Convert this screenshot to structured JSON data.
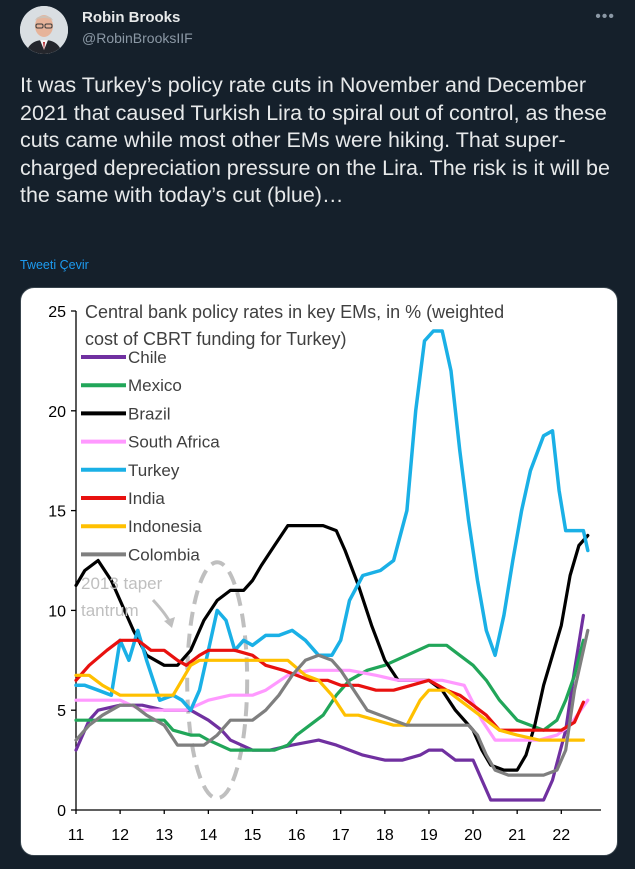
{
  "author": {
    "name": "Robin Brooks",
    "handle": "@RobinBrooksIIF"
  },
  "icons": {
    "more": "more-options-icon",
    "avatar": "profile-photo"
  },
  "tweet": {
    "text": "It was Turkey’s policy rate cuts in November and December 2021 that caused Turkish Lira to spiral out of control, as these cuts came while most other EMs were hiking. That super-charged depreciation pressure on the Lira. The risk is it will be the same with today’s cut (blue)…",
    "translate_label": "Tweeti Çevir"
  },
  "colors": {
    "background": "#15202b",
    "link": "#1d9bf0"
  },
  "chart_data": {
    "type": "line",
    "title": "Central bank policy rates in key EMs, in % (weighted cost of CBRT funding for Turkey)",
    "xlabel": "",
    "ylabel": "",
    "xlim": [
      11,
      22.9
    ],
    "ylim": [
      0,
      25
    ],
    "x_ticks": [
      "11",
      "12",
      "13",
      "14",
      "15",
      "16",
      "17",
      "18",
      "19",
      "20",
      "21",
      "22"
    ],
    "y_ticks": [
      "0",
      "5",
      "10",
      "15",
      "20",
      "25"
    ],
    "grid": false,
    "legend_position": "top-left",
    "annotation": "2013 taper tantrum",
    "series": [
      {
        "name": "Chile",
        "color": "#7030a0",
        "x": [
          11,
          11.1,
          11.3,
          11.5,
          12,
          12.5,
          13,
          13.6,
          14,
          14.3,
          14.5,
          15,
          15.4,
          15.9,
          16.5,
          16.9,
          17.5,
          18.0,
          18.4,
          18.8,
          19.0,
          19.3,
          19.6,
          20.0,
          20.2,
          20.4,
          20.8,
          21.0,
          21.3,
          21.6,
          21.7,
          21.8,
          21.95,
          22.1,
          22.3,
          22.5
        ],
        "y": [
          3.0,
          3.5,
          4.5,
          5.0,
          5.25,
          5.25,
          5.0,
          5.0,
          4.5,
          4.0,
          3.5,
          3.0,
          3.0,
          3.25,
          3.5,
          3.25,
          2.75,
          2.5,
          2.5,
          2.75,
          3.0,
          3.0,
          2.5,
          2.5,
          1.5,
          0.5,
          0.5,
          0.5,
          0.5,
          0.5,
          1.0,
          1.5,
          2.75,
          4.0,
          7.0,
          9.75
        ]
      },
      {
        "name": "Mexico",
        "color": "#21a659",
        "x": [
          11,
          11.5,
          12,
          12.5,
          13.0,
          13.2,
          13.6,
          13.8,
          14.0,
          14.5,
          15.0,
          15.5,
          15.8,
          16.0,
          16.3,
          16.6,
          16.9,
          17.2,
          17.6,
          18.0,
          18.5,
          19.0,
          19.4,
          19.7,
          20.0,
          20.3,
          20.6,
          21.0,
          21.3,
          21.6,
          21.9,
          22.1,
          22.3,
          22.5
        ],
        "y": [
          4.5,
          4.5,
          4.5,
          4.5,
          4.5,
          4.0,
          3.75,
          3.75,
          3.5,
          3.0,
          3.0,
          3.0,
          3.25,
          3.75,
          4.25,
          4.75,
          5.75,
          6.5,
          7.0,
          7.25,
          7.75,
          8.25,
          8.25,
          7.75,
          7.25,
          6.5,
          5.5,
          4.5,
          4.25,
          4.0,
          4.5,
          5.5,
          6.75,
          8.5
        ]
      },
      {
        "name": "Brazil",
        "color": "#000000",
        "x": [
          11,
          11.2,
          11.5,
          11.8,
          12.0,
          12.3,
          12.6,
          13.0,
          13.3,
          13.6,
          13.9,
          14.2,
          14.5,
          14.8,
          15.0,
          15.2,
          15.5,
          15.8,
          16.0,
          16.3,
          16.6,
          16.9,
          17.1,
          17.4,
          17.7,
          18.0,
          18.3,
          18.6,
          19.0,
          19.3,
          19.6,
          20.0,
          20.2,
          20.4,
          20.7,
          21.0,
          21.2,
          21.4,
          21.6,
          21.8,
          22.0,
          22.2,
          22.4,
          22.6
        ],
        "y": [
          11.25,
          12.0,
          12.5,
          11.5,
          10.5,
          9.0,
          7.75,
          7.25,
          7.25,
          8.0,
          9.5,
          10.5,
          11.0,
          11.0,
          11.5,
          12.25,
          13.25,
          14.25,
          14.25,
          14.25,
          14.25,
          14.0,
          13.0,
          11.25,
          9.25,
          7.5,
          6.5,
          6.5,
          6.5,
          6.0,
          5.0,
          4.0,
          3.0,
          2.25,
          2.0,
          2.0,
          2.75,
          4.25,
          6.25,
          7.75,
          9.25,
          11.75,
          13.25,
          13.75
        ]
      },
      {
        "name": "South Africa",
        "color": "#ff99ff",
        "x": [
          11,
          11.5,
          12,
          12.5,
          13.0,
          13.5,
          14.0,
          14.5,
          15.0,
          15.3,
          15.8,
          16.3,
          16.8,
          17.2,
          17.8,
          18.3,
          18.8,
          19.3,
          19.8,
          20.2,
          20.5,
          21.0,
          21.5,
          21.9,
          22.2,
          22.6
        ],
        "y": [
          5.5,
          5.5,
          5.5,
          5.0,
          5.0,
          5.0,
          5.5,
          5.75,
          5.75,
          6.0,
          6.75,
          7.0,
          7.0,
          7.0,
          6.75,
          6.5,
          6.5,
          6.5,
          6.25,
          4.5,
          3.5,
          3.5,
          3.5,
          3.75,
          4.25,
          5.5
        ]
      },
      {
        "name": "Turkey",
        "color": "#1ab0e6",
        "x": [
          11,
          11.2,
          11.5,
          11.8,
          12.0,
          12.2,
          12.4,
          12.6,
          12.9,
          13.2,
          13.4,
          13.6,
          13.8,
          14.0,
          14.2,
          14.4,
          14.6,
          14.8,
          15.0,
          15.3,
          15.6,
          15.9,
          16.2,
          16.5,
          16.8,
          17.0,
          17.2,
          17.5,
          17.9,
          18.2,
          18.5,
          18.7,
          18.9,
          19.1,
          19.3,
          19.5,
          19.7,
          19.9,
          20.1,
          20.3,
          20.5,
          20.7,
          20.9,
          21.1,
          21.3,
          21.6,
          21.8,
          21.95,
          22.1,
          22.3,
          22.5,
          22.6
        ],
        "y": [
          6.25,
          6.25,
          6.0,
          5.75,
          8.5,
          7.5,
          9.0,
          7.5,
          5.5,
          5.75,
          5.5,
          5.0,
          6.0,
          8.0,
          10.0,
          9.5,
          8.0,
          8.5,
          8.25,
          8.75,
          8.75,
          9.0,
          8.5,
          7.75,
          7.75,
          8.5,
          10.5,
          11.75,
          12.0,
          12.5,
          15.0,
          20.0,
          23.5,
          24.0,
          24.0,
          22.0,
          18.0,
          14.5,
          11.5,
          9.0,
          7.75,
          9.75,
          12.5,
          15.0,
          17.0,
          18.75,
          19.0,
          16.0,
          14.0,
          14.0,
          14.0,
          13.0
        ]
      },
      {
        "name": "India",
        "color": "#e8110f",
        "x": [
          11,
          11.3,
          11.7,
          12.0,
          12.4,
          12.7,
          13.0,
          13.3,
          13.5,
          13.8,
          14.0,
          14.3,
          14.6,
          15.0,
          15.3,
          15.7,
          16.0,
          16.3,
          16.7,
          17.0,
          17.4,
          17.8,
          18.2,
          18.6,
          19.0,
          19.4,
          19.7,
          20.0,
          20.3,
          20.6,
          21.0,
          21.5,
          22.0,
          22.3,
          22.5
        ],
        "y": [
          6.5,
          7.25,
          8.0,
          8.5,
          8.5,
          8.0,
          8.0,
          7.5,
          7.25,
          7.75,
          8.0,
          8.0,
          8.0,
          7.75,
          7.25,
          7.0,
          6.75,
          6.5,
          6.5,
          6.25,
          6.25,
          6.0,
          6.0,
          6.25,
          6.5,
          6.0,
          5.75,
          5.25,
          4.75,
          4.0,
          4.0,
          4.0,
          4.0,
          4.4,
          5.4
        ]
      },
      {
        "name": "Indonesia",
        "color": "#ffc000",
        "x": [
          11,
          11.3,
          11.6,
          12.0,
          12.4,
          12.8,
          13.2,
          13.4,
          13.6,
          13.8,
          14.2,
          14.6,
          15.0,
          15.4,
          15.8,
          16.2,
          16.5,
          16.8,
          17.1,
          17.4,
          17.8,
          18.2,
          18.5,
          18.8,
          19.0,
          19.4,
          19.7,
          20.0,
          20.3,
          20.6,
          21.0,
          21.5,
          22.0,
          22.5
        ],
        "y": [
          6.75,
          6.75,
          6.25,
          5.75,
          5.75,
          5.75,
          5.75,
          6.5,
          7.25,
          7.5,
          7.5,
          7.5,
          7.5,
          7.5,
          7.5,
          6.75,
          6.5,
          5.75,
          4.75,
          4.75,
          4.5,
          4.25,
          4.25,
          5.5,
          6.0,
          6.0,
          5.5,
          5.0,
          4.5,
          4.0,
          3.75,
          3.5,
          3.5,
          3.5
        ]
      },
      {
        "name": "Colombia",
        "color": "#7f7f7f",
        "x": [
          11,
          11.3,
          11.6,
          12.0,
          12.3,
          12.6,
          13.0,
          13.3,
          13.6,
          13.9,
          14.2,
          14.5,
          14.8,
          15.0,
          15.3,
          15.6,
          15.9,
          16.2,
          16.5,
          16.8,
          17.0,
          17.3,
          17.6,
          17.9,
          18.2,
          18.5,
          19.0,
          19.5,
          19.9,
          20.1,
          20.3,
          20.5,
          20.8,
          21.0,
          21.3,
          21.6,
          21.9,
          22.1,
          22.3,
          22.6
        ],
        "y": [
          3.5,
          4.25,
          4.75,
          5.25,
          5.25,
          4.75,
          4.25,
          3.25,
          3.25,
          3.25,
          3.75,
          4.5,
          4.5,
          4.5,
          5.0,
          5.75,
          6.75,
          7.5,
          7.75,
          7.5,
          7.0,
          6.0,
          5.0,
          4.75,
          4.5,
          4.25,
          4.25,
          4.25,
          4.25,
          3.75,
          2.75,
          2.0,
          1.75,
          1.75,
          1.75,
          1.75,
          2.0,
          3.0,
          6.0,
          9.0
        ]
      }
    ]
  }
}
